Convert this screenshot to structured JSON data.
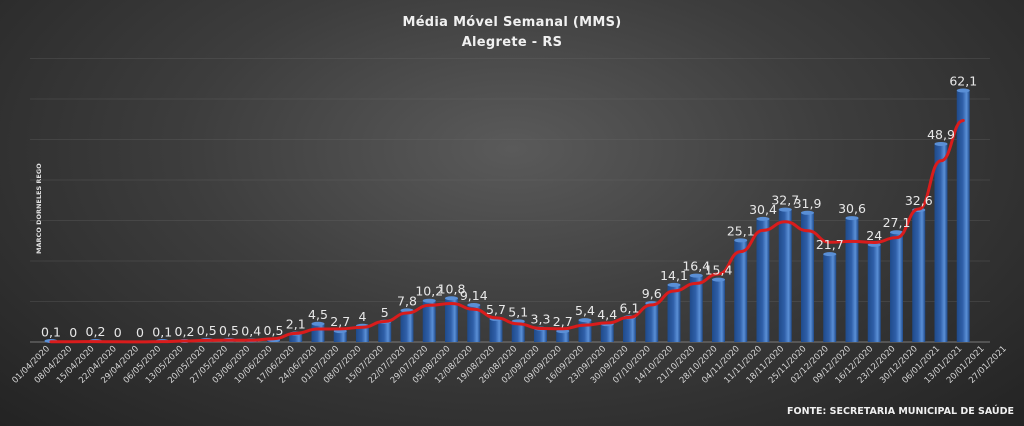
{
  "chart_data": {
    "type": "bar",
    "title": "Média Móvel Semanal  (MMS)",
    "subtitle": "Alegrete  -  RS",
    "ylabel": "MARCO DORNELES REGO",
    "source": "FONTE: SECRETARIA MUNICIPAL DE SAÚDE",
    "ylim": [
      0,
      70
    ],
    "grid": true,
    "x_tick_labels": [
      "01/04/2020",
      "08/04/2020",
      "15/04/2020",
      "22/04/2020",
      "29/04/2020",
      "06/05/2020",
      "13/05/2020",
      "20/05/2020",
      "27/05/2020",
      "03/06/2020",
      "10/06/2020",
      "17/06/2020",
      "24/06/2020",
      "01/07/2020",
      "08/07/2020",
      "15/07/2020",
      "22/07/2020",
      "29/07/2020",
      "05/08/2020",
      "12/08/2020",
      "19/08/2020",
      "26/08/2020",
      "02/09/2020",
      "09/09/2020",
      "16/09/2020",
      "23/09/2020",
      "30/09/2020",
      "07/10/2020",
      "14/10/2020",
      "21/10/2020",
      "28/10/2020",
      "04/11/2020",
      "11/11/2020",
      "18/11/2020",
      "25/11/2020",
      "02/12/2020",
      "09/12/2020",
      "16/12/2020",
      "23/12/2020",
      "30/12/2020",
      "06/01/2021",
      "13/01/2021",
      "20/01/2021",
      "27/01/2021"
    ],
    "categories": [
      "01/04/2020",
      "08/04/2020",
      "15/04/2020",
      "22/04/2020",
      "29/04/2020",
      "06/05/2020",
      "13/05/2020",
      "20/05/2020",
      "27/05/2020",
      "03/06/2020",
      "10/06/2020",
      "17/06/2020",
      "24/06/2020",
      "01/07/2020",
      "08/07/2020",
      "15/07/2020",
      "22/07/2020",
      "29/07/2020",
      "05/08/2020",
      "12/08/2020",
      "19/08/2020",
      "26/08/2020",
      "02/09/2020",
      "09/09/2020",
      "16/09/2020",
      "23/09/2020",
      "30/09/2020",
      "07/10/2020",
      "14/10/2020",
      "21/10/2020",
      "28/10/2020",
      "04/11/2020",
      "11/11/2020",
      "18/11/2020",
      "25/11/2020",
      "02/12/2020",
      "09/12/2020",
      "16/12/2020",
      "23/12/2020",
      "30/12/2020",
      "06/01/2021",
      "13/01/2021"
    ],
    "values": [
      0.1,
      0,
      0.2,
      0,
      0,
      0.1,
      0.2,
      0.5,
      0.5,
      0.4,
      0.5,
      2.1,
      4.5,
      2.7,
      4,
      5,
      7.8,
      10.2,
      10.8,
      9.14,
      5.7,
      5.1,
      3.3,
      2.7,
      5.4,
      4.4,
      6.1,
      9.6,
      14.1,
      16.4,
      15.4,
      25.1,
      30.4,
      32.7,
      31.9,
      21.7,
      30.6,
      24,
      27.1,
      32.6,
      48.9,
      62.1
    ],
    "data_labels": [
      "0,1",
      "0",
      "0,2",
      "0",
      "0",
      "0,1",
      "0,2",
      "0,5",
      "0,5",
      "0,4",
      "0,5",
      "2,1",
      "4,5",
      "2,7",
      "4",
      "5",
      "7,8",
      "10,2",
      "10,8",
      "9,14",
      "5,7",
      "5,1",
      "3,3",
      "2,7",
      "5,4",
      "4,4",
      "6,1",
      "9,6",
      "14,1",
      "16,4",
      "15,4",
      "25,1",
      "30,4",
      "32,7",
      "31,9",
      "21,7",
      "30,6",
      "24",
      "27,1",
      "32,6",
      "48,9",
      "62,1"
    ],
    "trend_line": {
      "type": "line",
      "color": "#d91c1c"
    },
    "colors": {
      "bar": "#2f5fa8",
      "bar_highlight": "#5a8fd6",
      "trend": "#d91c1c",
      "grid": "#6a6a6a"
    }
  }
}
